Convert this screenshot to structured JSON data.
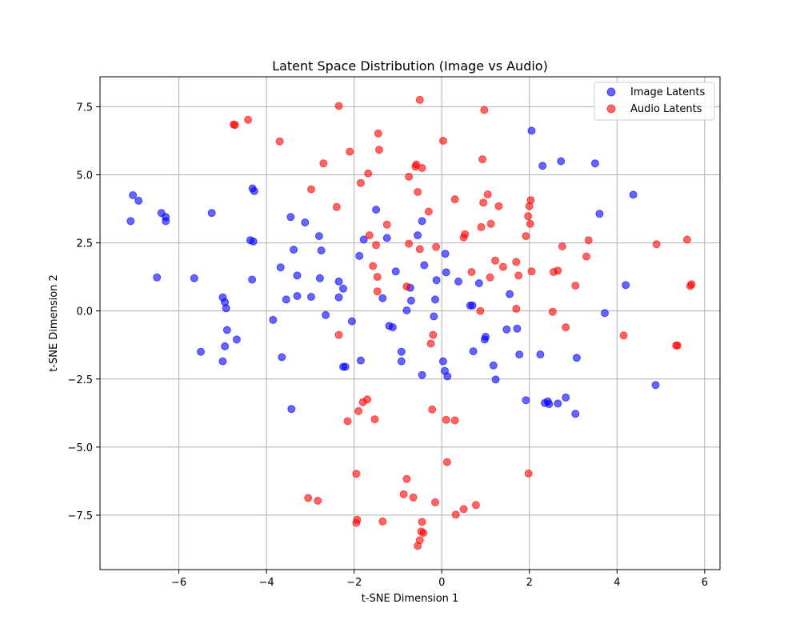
{
  "chart_data": {
    "type": "scatter",
    "title": "Latent Space Distribution (Image vs Audio)",
    "xlabel": "t-SNE Dimension 1",
    "ylabel": "t-SNE Dimension 2",
    "xlim": [
      -7.8,
      6.35
    ],
    "ylim": [
      -9.5,
      8.6
    ],
    "xticks": [
      -6,
      -4,
      -2,
      0,
      2,
      4,
      6
    ],
    "xtick_labels": [
      "−6",
      "−4",
      "−2",
      "0",
      "2",
      "4",
      "6"
    ],
    "yticks": [
      -7.5,
      -5.0,
      -2.5,
      0.0,
      2.5,
      5.0,
      7.5
    ],
    "ytick_labels": [
      "−7.5",
      "−5.0",
      "−2.5",
      "0.0",
      "2.5",
      "5.0",
      "7.5"
    ],
    "grid": true,
    "legend_position": "top-right",
    "series": [
      {
        "name": "Image Latents",
        "color": "#0000ff",
        "x": [
          -7.05,
          -6.92,
          -7.1,
          -6.4,
          -6.3,
          -6.3,
          -5.25,
          -6.5,
          -5.65,
          -5.5,
          -5.0,
          -4.95,
          -4.92,
          -4.9,
          -4.68,
          -4.95,
          -5.0,
          -4.32,
          -4.28,
          -4.37,
          -4.3,
          -4.33,
          -3.68,
          -3.55,
          -3.45,
          -3.38,
          -3.3,
          -3.3,
          -3.12,
          -2.98,
          -2.8,
          -2.75,
          -2.78,
          -2.65,
          -2.35,
          -2.35,
          -2.25,
          -2.2,
          -2.05,
          -3.85,
          -3.65,
          -3.43,
          -2.25,
          -1.88,
          -1.85,
          -1.78,
          -1.5,
          -1.35,
          -1.25,
          -1.2,
          -1.12,
          -1.05,
          -0.92,
          -0.92,
          -0.8,
          -0.72,
          -0.7,
          -0.55,
          -0.45,
          -0.4,
          -0.45,
          -0.18,
          -0.15,
          -0.12,
          0.03,
          0.08,
          0.07,
          0.1,
          0.13,
          0.38,
          0.65,
          0.7,
          0.72,
          0.85,
          0.98,
          1.0,
          1.18,
          1.23,
          1.48,
          1.55,
          1.72,
          1.77,
          1.92,
          2.05,
          2.25,
          2.3,
          2.35,
          2.42,
          2.45,
          2.65,
          2.72,
          2.83,
          3.05,
          3.08,
          3.5,
          3.6,
          3.72,
          4.2,
          4.37,
          4.88
        ],
        "y": [
          4.25,
          4.05,
          3.3,
          3.6,
          3.45,
          3.3,
          3.6,
          1.23,
          1.2,
          -1.5,
          0.5,
          0.32,
          0.1,
          -0.7,
          -1.05,
          -1.3,
          -1.85,
          4.5,
          4.4,
          2.6,
          2.55,
          1.15,
          1.6,
          0.42,
          3.45,
          2.25,
          1.3,
          0.55,
          3.25,
          0.52,
          2.75,
          2.22,
          1.2,
          -0.15,
          1.08,
          0.5,
          0.82,
          -2.05,
          -0.38,
          -0.33,
          -1.7,
          -3.6,
          -2.05,
          2.02,
          -1.82,
          2.62,
          3.72,
          0.47,
          2.68,
          -0.55,
          -0.6,
          1.45,
          -1.5,
          -1.85,
          0.02,
          0.85,
          0.38,
          2.78,
          3.3,
          1.68,
          -2.35,
          -0.2,
          0.42,
          1.13,
          -1.85,
          2.1,
          -2.2,
          1.42,
          -2.4,
          1.08,
          0.2,
          0.2,
          -1.48,
          1.02,
          -1.05,
          -0.95,
          -2.0,
          -2.52,
          -0.68,
          0.62,
          -0.65,
          -1.6,
          -3.28,
          6.62,
          -1.6,
          5.33,
          -3.38,
          -3.32,
          -3.42,
          -3.4,
          5.5,
          -3.18,
          -3.78,
          -1.72,
          5.42,
          3.57,
          -0.08,
          0.95,
          4.27,
          -2.72
        ]
      },
      {
        "name": "Audio Latents",
        "color": "#ff0000",
        "x": [
          -4.75,
          -4.72,
          -4.42,
          -3.7,
          -2.35,
          -2.1,
          -2.7,
          -1.45,
          -1.43,
          -1.68,
          -1.85,
          -2.98,
          -2.4,
          -1.65,
          -1.5,
          -1.57,
          -1.47,
          -1.47,
          -1.25,
          -0.5,
          -0.58,
          -0.6,
          -0.45,
          -0.75,
          -0.55,
          -0.3,
          -0.13,
          0.03,
          0.3,
          -0.8,
          -0.5,
          -0.75,
          0.5,
          0.53,
          0.68,
          0.9,
          0.93,
          0.95,
          1.05,
          1.1,
          1.12,
          1.22,
          1.3,
          1.4,
          1.7,
          1.75,
          1.92,
          1.97,
          2.0,
          2.02,
          2.03,
          2.05,
          2.55,
          2.65,
          2.75,
          3.05,
          3.3,
          3.35,
          4.15,
          4.9,
          5.35,
          5.38,
          5.6,
          5.67,
          5.7,
          0.97,
          -2.35,
          -1.8,
          -1.7,
          -2.15,
          -1.9,
          -1.53,
          -0.25,
          -0.2,
          -0.22,
          0.1,
          0.3,
          0.88,
          1.7,
          2.53,
          2.83,
          0.12,
          -1.95,
          1.98,
          -0.8,
          -3.05,
          -2.83,
          -0.87,
          -0.65,
          -0.15,
          0.5,
          0.78,
          0.32,
          -1.95,
          -1.93,
          -1.35,
          -0.45,
          -0.47,
          -0.42,
          -0.5,
          -0.55
        ],
        "y": [
          6.85,
          6.83,
          7.02,
          6.23,
          7.53,
          5.85,
          5.42,
          6.52,
          5.92,
          5.05,
          4.7,
          4.47,
          3.82,
          2.78,
          2.42,
          1.65,
          1.25,
          0.72,
          3.17,
          7.75,
          5.38,
          5.3,
          5.25,
          4.93,
          4.37,
          3.65,
          2.35,
          6.25,
          4.1,
          0.9,
          2.27,
          2.47,
          2.7,
          2.82,
          1.43,
          3.08,
          5.57,
          3.98,
          4.28,
          1.23,
          3.2,
          1.85,
          3.85,
          1.62,
          1.8,
          1.3,
          2.75,
          3.48,
          3.85,
          3.2,
          4.07,
          1.45,
          1.43,
          1.48,
          2.37,
          0.93,
          2.0,
          2.6,
          -0.9,
          2.45,
          -1.27,
          -1.27,
          2.62,
          0.92,
          0.98,
          7.38,
          -0.88,
          -3.35,
          -3.25,
          -4.05,
          -3.68,
          -3.98,
          -1.2,
          -0.88,
          -3.62,
          -4.0,
          -4.02,
          0.0,
          0.08,
          -0.03,
          -0.6,
          -5.55,
          -5.98,
          -5.97,
          -6.17,
          -6.87,
          -6.97,
          -6.73,
          -6.85,
          -7.03,
          -7.28,
          -7.13,
          -7.48,
          -7.78,
          -7.67,
          -7.73,
          -7.75,
          -8.1,
          -8.15,
          -8.42,
          -8.63
        ]
      }
    ]
  }
}
